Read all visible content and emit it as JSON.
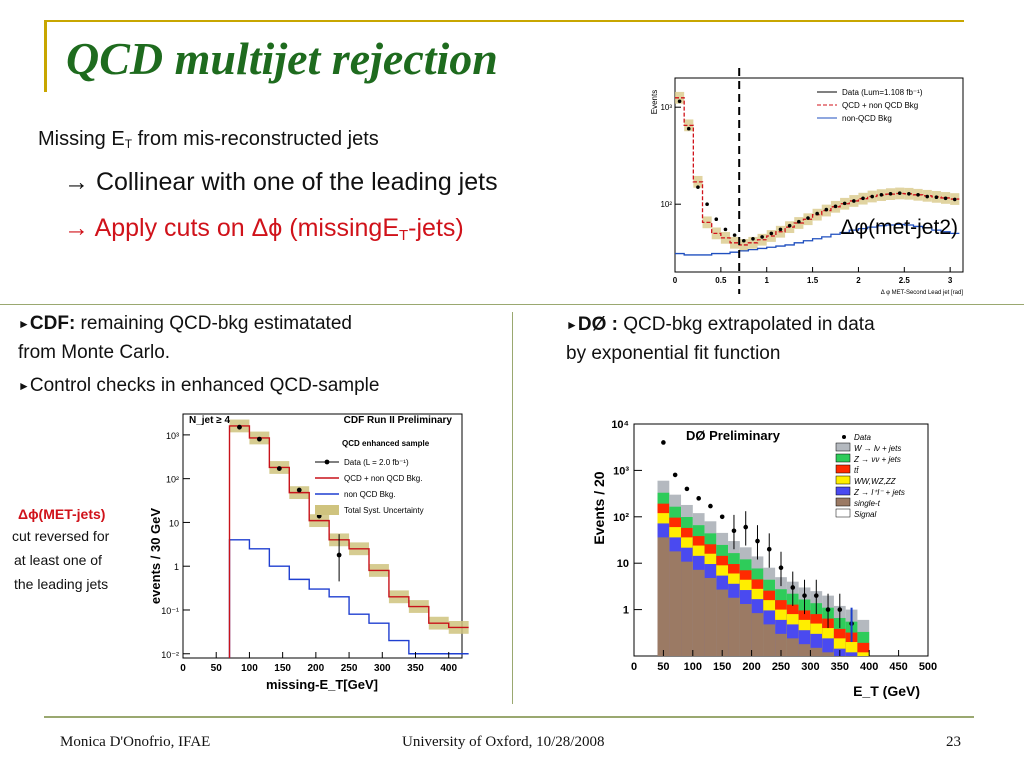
{
  "slide": {
    "title": "QCD multijet rejection",
    "line1_pre": "Missing E",
    "line1_sub": "T",
    "line1_post": " from mis-reconstructed jets",
    "bullet1": "Collinear with one of the leading jets",
    "bullet2_pre": "Apply cuts on ",
    "bullet2_sym": "Δϕ",
    "bullet2_mid": " (missingE",
    "bullet2_sub": "T",
    "bullet2_post": "-jets)",
    "arrow": "→"
  },
  "cdf": {
    "tri": "►",
    "label": "CDF:",
    "text1": " remaining QCD-bkg estimatated",
    "text2": "from Monte Carlo.",
    "text3": "Control checks in enhanced QCD-sample"
  },
  "dphi_note": {
    "head": "Δϕ(MET-jets)",
    "l1": "cut reversed for",
    "l2": "at least one of",
    "l3": "the leading jets"
  },
  "d0": {
    "tri": "►",
    "label": "DØ :",
    "text1": " QCD-bkg extrapolated in data",
    "text2": "by exponential fit function"
  },
  "footer": {
    "left": "Monica D'Onofrio, IFAE",
    "center": "University of Oxford, 10/28/2008",
    "page": "23"
  },
  "chart_data": [
    {
      "type": "line",
      "title": "Δφ(met-jet2)",
      "xlabel": "Δ φ MET-Second Lead jet [rad]",
      "ylabel": "Events",
      "xlim": [
        0,
        3.14
      ],
      "ylim": [
        20,
        2000
      ],
      "log_y": true,
      "xticks": [
        "0",
        "0.5",
        "1",
        "1.5",
        "2",
        "2.5",
        "3"
      ],
      "yticks": [
        "10²",
        "10³"
      ],
      "cut_line_x": 0.7,
      "x": [
        0.05,
        0.15,
        0.25,
        0.35,
        0.45,
        0.55,
        0.65,
        0.75,
        0.85,
        0.95,
        1.05,
        1.15,
        1.25,
        1.35,
        1.45,
        1.55,
        1.65,
        1.75,
        1.85,
        1.95,
        2.05,
        2.15,
        2.25,
        2.35,
        2.45,
        2.55,
        2.65,
        2.75,
        2.85,
        2.95,
        3.05
      ],
      "series": [
        {
          "name": "Data (Lum=1.108 fb⁻¹)",
          "values": [
            1150,
            600,
            150,
            100,
            70,
            55,
            48,
            42,
            44,
            46,
            50,
            55,
            60,
            66,
            72,
            80,
            88,
            95,
            102,
            108,
            115,
            120,
            125,
            128,
            130,
            128,
            125,
            120,
            118,
            115,
            112
          ]
        },
        {
          "name": "QCD + non QCD Bkg",
          "values": [
            1250,
            650,
            170,
            65,
            50,
            45,
            40,
            38,
            40,
            43,
            47,
            52,
            58,
            64,
            70,
            78,
            86,
            94,
            101,
            108,
            114,
            120,
            124,
            127,
            129,
            128,
            125,
            122,
            119,
            116,
            113
          ]
        },
        {
          "name": "non-QCD Bkg",
          "values": [
            31,
            30,
            30,
            30,
            31,
            31,
            32,
            33,
            34,
            35,
            36,
            37,
            38,
            40,
            42,
            44,
            46,
            49,
            51,
            54,
            56,
            58,
            60,
            61,
            62,
            61,
            59,
            57,
            54,
            52,
            50
          ]
        }
      ],
      "legend": [
        "Data (Lum=1.108 fb⁻¹)",
        "QCD + non QCD Bkg",
        "non-QCD Bkg"
      ],
      "legend_position": "top-right"
    },
    {
      "type": "line",
      "title": "CDF Run II Preliminary",
      "annotation": "N_jet ≥ 4",
      "xlabel": "missing-E_T[GeV]",
      "ylabel": "events / 30 GeV",
      "xlim": [
        0,
        420
      ],
      "ylim": [
        0.008,
        3000
      ],
      "log_y": true,
      "xticks": [
        "0",
        "50",
        "100",
        "150",
        "200",
        "250",
        "300",
        "350",
        "400"
      ],
      "yticks": [
        "10³",
        "10²",
        "10",
        "1",
        "10⁻¹",
        "10⁻²"
      ],
      "bins": [
        [
          70,
          100
        ],
        [
          100,
          130
        ],
        [
          130,
          160
        ],
        [
          160,
          190
        ],
        [
          190,
          220
        ],
        [
          220,
          250
        ],
        [
          250,
          280
        ],
        [
          280,
          310
        ],
        [
          310,
          340
        ],
        [
          340,
          370
        ],
        [
          370,
          400
        ],
        [
          400,
          430
        ]
      ],
      "legend_title": "QCD enhanced sample",
      "legend": [
        "Data (L = 2.0 fb⁻¹)",
        "QCD + non QCD Bkg.",
        "non QCD Bkg.",
        "Total Syst. Uncertainty"
      ],
      "series": [
        {
          "name": "Data (L = 2.0 fb⁻¹)",
          "x": [
            85,
            115,
            145,
            175,
            205,
            235
          ],
          "values": [
            1500,
            800,
            170,
            55,
            14,
            1.8
          ]
        },
        {
          "name": "QCD + non QCD Bkg.",
          "values": [
            1600,
            850,
            180,
            48,
            11,
            4,
            2.5,
            0.8,
            0.2,
            0.12,
            0.05,
            0.04
          ]
        },
        {
          "name": "non QCD Bkg.",
          "values": [
            4,
            2.5,
            1.0,
            0.5,
            0.3,
            0.2,
            0.08,
            0.05,
            0.02,
            0.01,
            0.01,
            0.01
          ]
        }
      ]
    },
    {
      "type": "bar",
      "title": "DØ Preliminary",
      "xlabel": "E_T (GeV)",
      "ylabel": "Events / 20",
      "xlim": [
        0,
        500
      ],
      "ylim": [
        0.1,
        10000
      ],
      "log_y": true,
      "xticks": [
        "0",
        "50",
        "100",
        "150",
        "200",
        "250",
        "300",
        "350",
        "400",
        "450",
        "500"
      ],
      "yticks": [
        "10⁴",
        "10³",
        "10²",
        "10",
        "1"
      ],
      "legend": [
        "Data",
        "W → lν + jets",
        "Z → νν + jets",
        "tt̄",
        "WW,WZ,ZZ",
        "Z → l⁺l⁻ + jets",
        "single-t",
        "Signal"
      ],
      "bin_edges": [
        40,
        60,
        80,
        100,
        120,
        140,
        160,
        180,
        200,
        220,
        240,
        260,
        280,
        300,
        320,
        340,
        360,
        380,
        400
      ],
      "stack_totals": [
        600,
        300,
        180,
        120,
        80,
        45,
        30,
        22,
        14,
        8,
        5,
        4,
        3,
        2.5,
        2,
        1.2,
        1,
        0.6
      ],
      "data_x": [
        50,
        70,
        90,
        110,
        130,
        150,
        170,
        190,
        210,
        230,
        250,
        270,
        290,
        310,
        330,
        350,
        370
      ],
      "data_y": [
        4000,
        800,
        400,
        250,
        170,
        100,
        50,
        60,
        30,
        20,
        8,
        3,
        2,
        2,
        1,
        1,
        0.5
      ]
    }
  ]
}
